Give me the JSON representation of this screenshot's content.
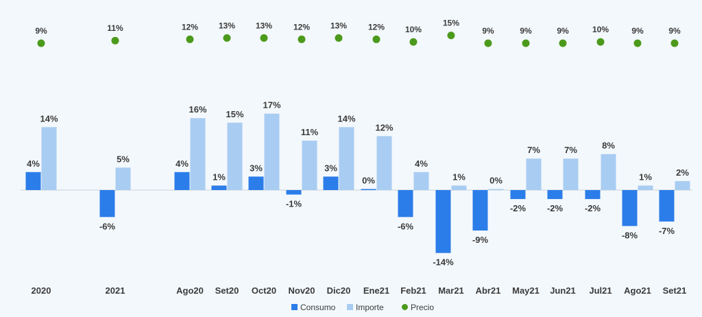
{
  "chart_data": {
    "type": "bar",
    "categories": [
      "2020",
      "2021",
      "Ago20",
      "Set20",
      "Oct20",
      "Nov20",
      "Dic20",
      "Ene21",
      "Feb21",
      "Mar21",
      "Abr21",
      "May21",
      "Jun21",
      "Jul21",
      "Ago21",
      "Set21"
    ],
    "series": [
      {
        "name": "Consumo",
        "type": "bar",
        "color": "#2b7de9",
        "values": [
          4,
          -6,
          4,
          1,
          3,
          -1,
          3,
          0,
          -6,
          -14,
          -9,
          -2,
          -2,
          -2,
          -8,
          -7
        ],
        "labels": [
          "4%",
          "-6%",
          "4%",
          "1%",
          "3%",
          "-1%",
          "3%",
          "0%",
          "-6%",
          "-14%",
          "-9%",
          "-2%",
          "-2%",
          "-2%",
          "-8%",
          "-7%"
        ]
      },
      {
        "name": "Importe",
        "type": "bar",
        "color": "#a9ccf2",
        "values": [
          14,
          5,
          16,
          15,
          17,
          11,
          14,
          12,
          4,
          1,
          0,
          7,
          7,
          8,
          1,
          2
        ],
        "labels": [
          "14%",
          "5%",
          "16%",
          "15%",
          "17%",
          "11%",
          "14%",
          "12%",
          "4%",
          "1%",
          "0%",
          "7%",
          "7%",
          "8%",
          "1%",
          "2%"
        ]
      },
      {
        "name": "Precio",
        "type": "scatter",
        "color": "#4c9a1c",
        "values": [
          9,
          11,
          12,
          13,
          13,
          12,
          13,
          12,
          10,
          15,
          9,
          9,
          9,
          10,
          9,
          9
        ],
        "labels": [
          "9%",
          "11%",
          "12%",
          "13%",
          "13%",
          "12%",
          "13%",
          "12%",
          "10%",
          "15%",
          "9%",
          "9%",
          "9%",
          "10%",
          "9%",
          "9%"
        ]
      }
    ],
    "legend_position": "bottom-center",
    "grid": false
  }
}
